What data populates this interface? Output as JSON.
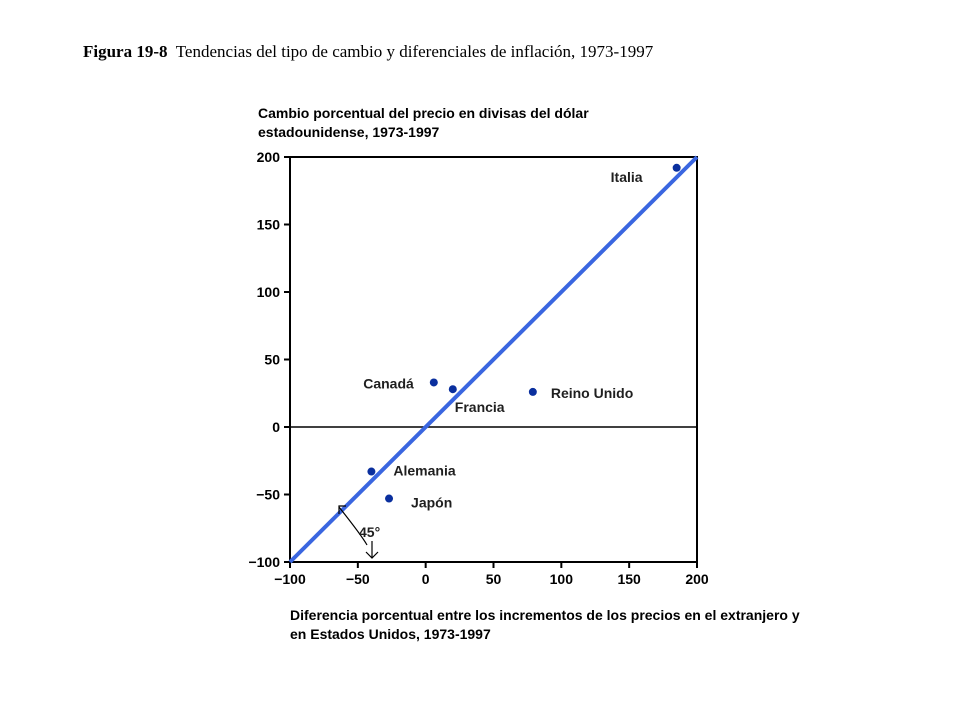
{
  "caption": {
    "figure_number": "Figura 19-8",
    "title": "Tendencias del tipo de cambio y diferenciales de inflación, 1973-1997"
  },
  "colors": {
    "line": "#3a66e0",
    "point": "#0a2f9e",
    "axis": "#000000"
  },
  "chart_data": {
    "type": "scatter",
    "title": "Tendencias del tipo de cambio y diferenciales de inflación, 1973-1997",
    "ylabel": "Cambio porcentual del precio en divisas del dólar estadounidense, 1973-1997",
    "xlabel": "Diferencia porcentual entre los incrementos de los precios en el extranjero y en Estados Unidos, 1973-1997",
    "xlim": [
      -100,
      200
    ],
    "ylim": [
      -100,
      200
    ],
    "x_ticks": [
      -100,
      -50,
      0,
      50,
      100,
      150,
      200
    ],
    "y_ticks": [
      -100,
      -50,
      0,
      50,
      100,
      150,
      200
    ],
    "x_tick_labels": [
      "−100",
      "−50",
      "0",
      "50",
      "100",
      "150",
      "200"
    ],
    "y_tick_labels": [
      "−100",
      "−50",
      "0",
      "50",
      "100",
      "150",
      "200"
    ],
    "grid": false,
    "reference_line": {
      "from": [
        -100,
        -100
      ],
      "to": [
        200,
        200
      ]
    },
    "angle_annotation": "45°",
    "points": [
      {
        "label": "Italia",
        "x": 185,
        "y": 192
      },
      {
        "label": "Canadá",
        "x": 6,
        "y": 33
      },
      {
        "label": "Francia",
        "x": 20,
        "y": 28
      },
      {
        "label": "Reino Unido",
        "x": 79,
        "y": 26
      },
      {
        "label": "Alemania",
        "x": -40,
        "y": -33
      },
      {
        "label": "Japón",
        "x": -27,
        "y": -53
      }
    ]
  }
}
